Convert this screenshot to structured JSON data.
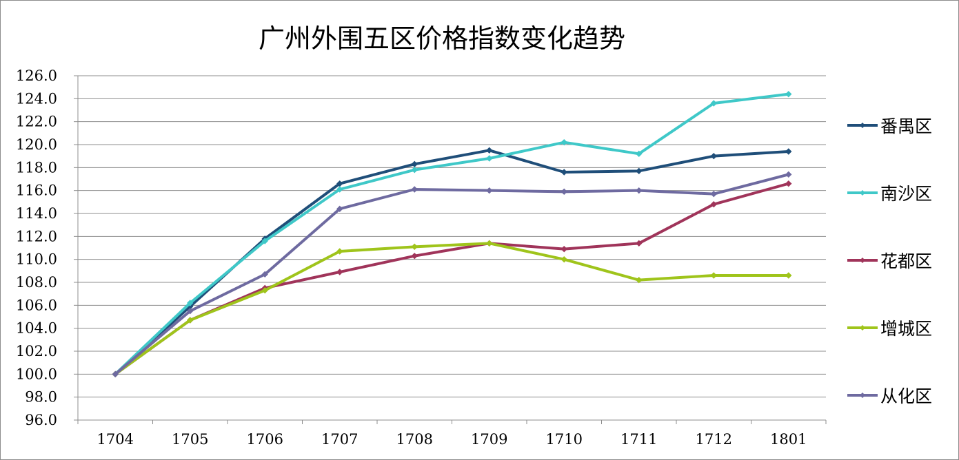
{
  "chart_data": {
    "type": "line",
    "title": "广州外围五区价格指数变化趋势",
    "categories": [
      "1704",
      "1705",
      "1706",
      "1707",
      "1708",
      "1709",
      "1710",
      "1711",
      "1712",
      "1801"
    ],
    "ylim": [
      96.0,
      126.0
    ],
    "ytick_step": 2.0,
    "ytick_labels": [
      "96.0",
      "98.0",
      "100.0",
      "102.0",
      "104.0",
      "106.0",
      "108.0",
      "110.0",
      "112.0",
      "114.0",
      "116.0",
      "118.0",
      "120.0",
      "122.0",
      "124.0",
      "126.0"
    ],
    "grid": true,
    "legend_position": "right",
    "series": [
      {
        "name": "番禺区",
        "color": "#1f4e79",
        "values": [
          100.0,
          105.9,
          111.8,
          116.6,
          118.3,
          119.5,
          117.6,
          117.7,
          119.0,
          119.4
        ]
      },
      {
        "name": "南沙区",
        "color": "#3fc8c8",
        "values": [
          100.0,
          106.2,
          111.6,
          116.1,
          117.8,
          118.8,
          120.2,
          119.2,
          123.6,
          124.4
        ]
      },
      {
        "name": "花都区",
        "color": "#a0345a",
        "values": [
          100.0,
          104.7,
          107.5,
          108.9,
          110.3,
          111.4,
          110.9,
          111.4,
          114.8,
          116.6
        ]
      },
      {
        "name": "增城区",
        "color": "#9fc41b",
        "values": [
          100.0,
          104.7,
          107.3,
          110.7,
          111.1,
          111.4,
          110.0,
          108.2,
          108.6,
          108.6
        ]
      },
      {
        "name": "从化区",
        "color": "#6e6aa0",
        "values": [
          100.0,
          105.5,
          108.7,
          114.4,
          116.1,
          116.0,
          115.9,
          116.0,
          115.7,
          117.4
        ]
      }
    ]
  }
}
